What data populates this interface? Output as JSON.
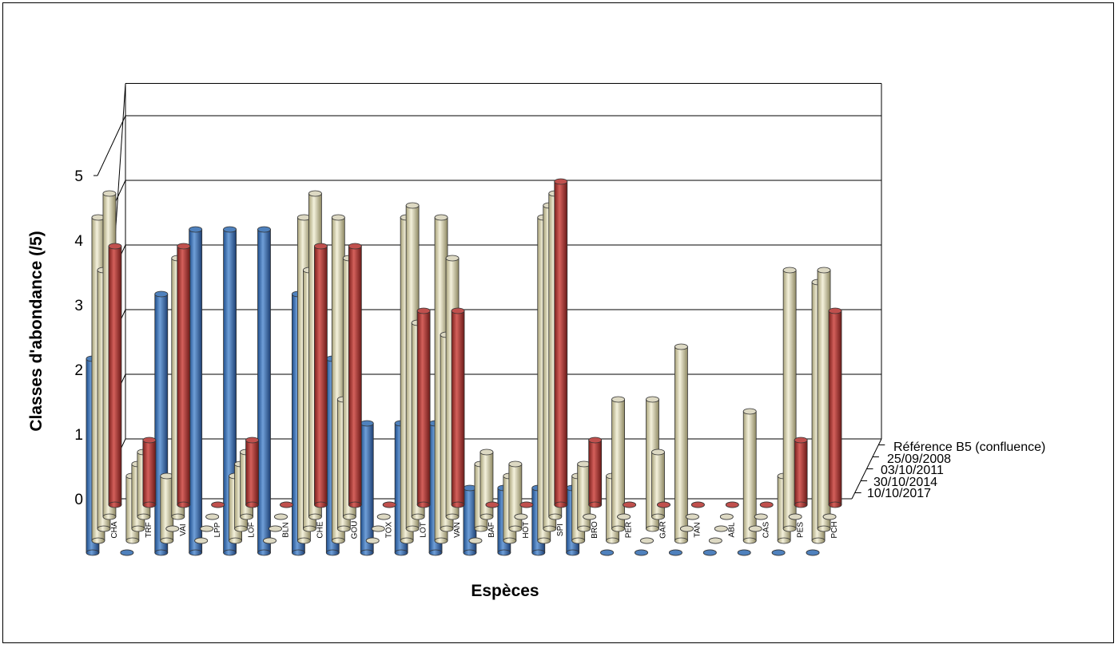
{
  "chart_data": {
    "type": "bar",
    "projection": "3d-depth",
    "xlabel": "Espèces",
    "ylabel": "Classes d'abondance  (/5)",
    "ylim": [
      0,
      5
    ],
    "yticks": [
      "0",
      "1",
      "2",
      "3",
      "4",
      "5"
    ],
    "grid": true,
    "categories": [
      "CHA",
      "TRF",
      "VAI",
      "LPP",
      "LOF",
      "BLN",
      "CHE",
      "GOU",
      "TOX",
      "LOT",
      "VAN",
      "BAF",
      "HOT",
      "SPI",
      "BRO",
      "PER",
      "GAR",
      "TAN",
      "ABL",
      "CAS",
      "PES",
      "PCH"
    ],
    "series": [
      {
        "name": "Référence B5 (confluence)",
        "color": "#4f81bd",
        "values": [
          3,
          0,
          4,
          5,
          5,
          5,
          4,
          3,
          2,
          2,
          2,
          1,
          1,
          1,
          1,
          0,
          0,
          0,
          0,
          0,
          0,
          0
        ]
      },
      {
        "name": "25/09/2008",
        "color": "#ddd9c3",
        "values": [
          5,
          1,
          1,
          0,
          1,
          0,
          5,
          5,
          0,
          5,
          5,
          0,
          1,
          5,
          1,
          1,
          0,
          3,
          0,
          2,
          1,
          4
        ]
      },
      {
        "name": "03/10/2011",
        "color": "#ddd9c3",
        "values": [
          4,
          1,
          0,
          0,
          1,
          0,
          4,
          2,
          0,
          5,
          3,
          1,
          1,
          5,
          1,
          2,
          2,
          0,
          0,
          0,
          4,
          4
        ]
      },
      {
        "name": "30/10/2014",
        "color": "#ddd9c3",
        "values": [
          5,
          1,
          4,
          0,
          1,
          0,
          5,
          4,
          0,
          3,
          4,
          1,
          0,
          5,
          0,
          0,
          1,
          0,
          0,
          0,
          0,
          0
        ]
      },
      {
        "name": "10/10/2017",
        "color": "#c0504d",
        "values": [
          4,
          1,
          4,
          0,
          1,
          0,
          4,
          4,
          0,
          3,
          3,
          0,
          0,
          5,
          1,
          0,
          0,
          0,
          0,
          0,
          1,
          3
        ]
      }
    ]
  }
}
